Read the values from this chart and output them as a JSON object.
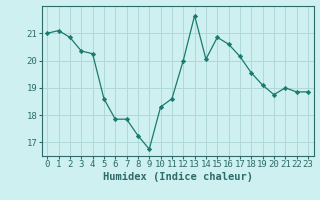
{
  "x": [
    0,
    1,
    2,
    3,
    4,
    5,
    6,
    7,
    8,
    9,
    10,
    11,
    12,
    13,
    14,
    15,
    16,
    17,
    18,
    19,
    20,
    21,
    22,
    23
  ],
  "y": [
    21.0,
    21.1,
    20.85,
    20.35,
    20.25,
    18.6,
    17.85,
    17.85,
    17.25,
    16.75,
    18.3,
    18.6,
    20.0,
    21.65,
    20.05,
    20.85,
    20.6,
    20.15,
    19.55,
    19.1,
    18.75,
    19.0,
    18.85,
    18.85
  ],
  "line_color": "#1a7a6e",
  "marker": "D",
  "marker_size": 2.2,
  "bg_color": "#cff0f0",
  "grid_color": "#b0d8d8",
  "xlabel": "Humidex (Indice chaleur)",
  "ylim": [
    16.5,
    22.0
  ],
  "yticks": [
    17,
    18,
    19,
    20,
    21
  ],
  "xticks": [
    0,
    1,
    2,
    3,
    4,
    5,
    6,
    7,
    8,
    9,
    10,
    11,
    12,
    13,
    14,
    15,
    16,
    17,
    18,
    19,
    20,
    21,
    22,
    23
  ],
  "xlabel_fontsize": 7.5,
  "tick_fontsize": 6.5,
  "axis_color": "#2d6b6b",
  "linewidth": 0.9
}
